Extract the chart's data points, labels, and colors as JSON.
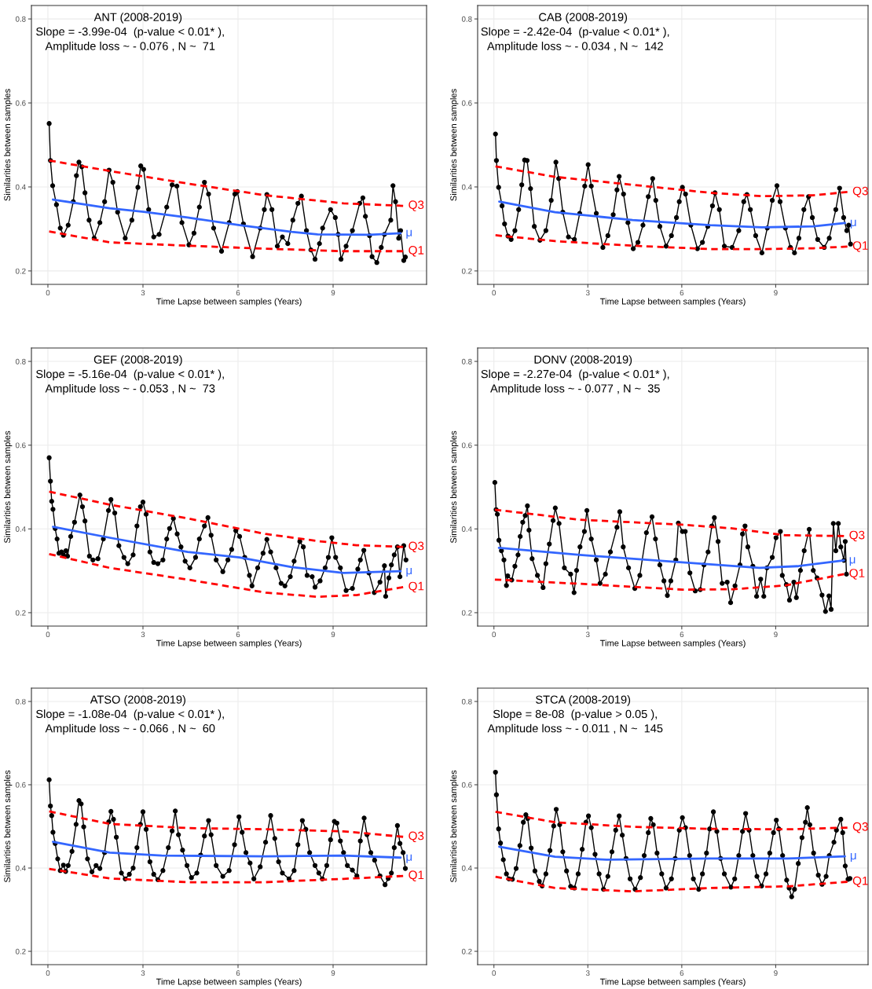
{
  "chart_data": [
    {
      "type": "line",
      "title": "ANT (2008-2019)",
      "annotations": [
        "Slope = -3.99e-04  (p-value < 0.01* ),",
        "Amplitude loss ~ - 0.076 , N ~  71"
      ],
      "xlabel": "Time Lapse between samples (Years)",
      "ylabel": "Similarities between samples",
      "xlim": [
        -0.52,
        11.95
      ],
      "ylim": [
        0.168,
        0.832
      ],
      "xticks": [
        0,
        3,
        6,
        9
      ],
      "yticks": [
        0.2,
        0.4,
        0.6,
        0.8
      ],
      "grid": true,
      "series": [
        {
          "color": "#000000",
          "marker": "circle",
          "x": [
            0.04,
            0.08,
            0.15,
            0.27,
            0.39,
            0.49,
            0.64,
            0.8,
            0.9,
            0.98,
            1.07,
            1.17,
            1.3,
            1.46,
            1.64,
            1.79,
            1.93,
            2.05,
            2.2,
            2.44,
            2.65,
            2.84,
            2.93,
            3.02,
            3.18,
            3.34,
            3.51,
            3.75,
            3.92,
            4.07,
            4.23,
            4.45,
            4.61,
            4.78,
            4.94,
            5.07,
            5.23,
            5.48,
            5.72,
            5.9,
            5.98,
            6.17,
            6.46,
            6.7,
            6.83,
            6.91,
            7.07,
            7.24,
            7.4,
            7.57,
            7.73,
            7.89,
            8.0,
            8.16,
            8.3,
            8.43,
            8.57,
            8.67,
            8.92,
            9.07,
            9.16,
            9.25,
            9.41,
            9.61,
            9.84,
            9.94,
            10.02,
            10.15,
            10.23,
            10.38,
            10.52,
            10.62,
            10.82,
            10.89,
            10.97,
            11.07,
            11.13,
            11.23,
            11.28
          ],
          "values": [
            0.551,
            0.463,
            0.403,
            0.358,
            0.302,
            0.285,
            0.309,
            0.365,
            0.427,
            0.459,
            0.448,
            0.386,
            0.321,
            0.278,
            0.315,
            0.365,
            0.44,
            0.411,
            0.34,
            0.278,
            0.321,
            0.399,
            0.45,
            0.442,
            0.346,
            0.281,
            0.287,
            0.352,
            0.405,
            0.402,
            0.315,
            0.262,
            0.29,
            0.352,
            0.411,
            0.383,
            0.302,
            0.247,
            0.315,
            0.383,
            0.389,
            0.312,
            0.234,
            0.302,
            0.346,
            0.382,
            0.346,
            0.259,
            0.281,
            0.265,
            0.321,
            0.361,
            0.378,
            0.296,
            0.25,
            0.228,
            0.265,
            0.302,
            0.346,
            0.327,
            0.287,
            0.228,
            0.259,
            0.296,
            0.361,
            0.374,
            0.33,
            0.284,
            0.234,
            0.22,
            0.256,
            0.287,
            0.321,
            0.403,
            0.365,
            0.278,
            0.296,
            0.225,
            0.233
          ]
        },
        {
          "name": "μ",
          "color": "#3366ff",
          "line_style": "solid",
          "x": [
            0.16,
            1.95,
            3.02,
            4.41,
            6.05,
            7.69,
            8.51,
            10.15,
            11.13
          ],
          "values": [
            0.37,
            0.349,
            0.341,
            0.327,
            0.309,
            0.293,
            0.287,
            0.286,
            0.29
          ]
        },
        {
          "name": "Q3",
          "color": "#ff0000",
          "line_style": "dashed",
          "x": [
            0.04,
            1.95,
            4.41,
            6.87,
            9.33,
            11.21
          ],
          "values": [
            0.463,
            0.438,
            0.408,
            0.38,
            0.361,
            0.355
          ]
        },
        {
          "name": "Q1",
          "color": "#ff0000",
          "line_style": "dashed",
          "x": [
            0.04,
            1.95,
            4.41,
            6.87,
            9.33,
            11.21
          ],
          "values": [
            0.294,
            0.268,
            0.26,
            0.253,
            0.247,
            0.247
          ]
        }
      ]
    },
    {
      "type": "line",
      "title": "CAB (2008-2019)",
      "annotations": [
        "Slope = -2.42e-04  (p-value < 0.01* ),",
        "Amplitude loss ~ - 0.034 , N ~  142"
      ],
      "xlabel": "Time Lapse between samples (Years)",
      "ylabel": "Similarities between samples",
      "xlim": [
        -0.52,
        11.95
      ],
      "ylim": [
        0.168,
        0.832
      ],
      "xticks": [
        0,
        3,
        6,
        9
      ],
      "yticks": [
        0.2,
        0.4,
        0.6,
        0.8
      ],
      "grid": true,
      "series": [
        {
          "color": "#000000",
          "marker": "circle",
          "x": [
            0.05,
            0.08,
            0.15,
            0.26,
            0.34,
            0.45,
            0.55,
            0.67,
            0.79,
            0.89,
            0.98,
            1.06,
            1.17,
            1.29,
            1.47,
            1.66,
            1.83,
            1.98,
            2.07,
            2.2,
            2.38,
            2.57,
            2.74,
            2.9,
            3.01,
            3.11,
            3.27,
            3.48,
            3.64,
            3.81,
            3.93,
            4.0,
            4.14,
            4.28,
            4.45,
            4.6,
            4.76,
            4.93,
            5.07,
            5.17,
            5.3,
            5.5,
            5.67,
            5.83,
            5.92,
            6.02,
            6.12,
            6.29,
            6.5,
            6.66,
            6.83,
            6.98,
            7.06,
            7.2,
            7.36,
            7.61,
            7.82,
            7.98,
            8.08,
            8.19,
            8.36,
            8.56,
            8.73,
            8.89,
            9.04,
            9.14,
            9.31,
            9.47,
            9.6,
            9.74,
            9.9,
            10.05,
            10.17,
            10.34,
            10.55,
            10.71,
            10.92,
            11.04,
            11.17,
            11.27,
            11.33,
            11.39
          ],
          "values": [
            0.526,
            0.463,
            0.399,
            0.355,
            0.312,
            0.283,
            0.275,
            0.296,
            0.346,
            0.405,
            0.464,
            0.463,
            0.396,
            0.306,
            0.273,
            0.296,
            0.368,
            0.459,
            0.42,
            0.34,
            0.281,
            0.275,
            0.337,
            0.402,
            0.453,
            0.402,
            0.337,
            0.256,
            0.284,
            0.334,
            0.393,
            0.425,
            0.383,
            0.315,
            0.253,
            0.268,
            0.309,
            0.377,
            0.42,
            0.368,
            0.306,
            0.259,
            0.284,
            0.327,
            0.365,
            0.399,
            0.383,
            0.309,
            0.253,
            0.268,
            0.306,
            0.355,
            0.386,
            0.346,
            0.259,
            0.256,
            0.296,
            0.365,
            0.382,
            0.346,
            0.284,
            0.243,
            0.302,
            0.368,
            0.403,
            0.365,
            0.302,
            0.256,
            0.243,
            0.278,
            0.346,
            0.377,
            0.327,
            0.275,
            0.256,
            0.278,
            0.346,
            0.397,
            0.327,
            0.296,
            0.309,
            0.264
          ]
        },
        {
          "name": "μ",
          "color": "#3366ff",
          "line_style": "solid",
          "x": [
            0.17,
            1.95,
            4.43,
            6.91,
            8.56,
            10.21,
            11.21
          ],
          "values": [
            0.365,
            0.34,
            0.321,
            0.309,
            0.304,
            0.306,
            0.314
          ]
        },
        {
          "name": "Q3",
          "color": "#ff0000",
          "line_style": "dashed",
          "x": [
            0.05,
            1.95,
            4.43,
            6.91,
            8.56,
            10.21,
            11.29
          ],
          "values": [
            0.449,
            0.424,
            0.405,
            0.386,
            0.378,
            0.38,
            0.388
          ]
        },
        {
          "name": "Q1",
          "color": "#ff0000",
          "line_style": "dashed",
          "x": [
            0.05,
            1.95,
            4.43,
            6.91,
            8.56,
            10.21,
            11.29
          ],
          "values": [
            0.285,
            0.271,
            0.26,
            0.252,
            0.252,
            0.254,
            0.258
          ]
        }
      ]
    },
    {
      "type": "line",
      "title": "GEF (2008-2019)",
      "annotations": [
        "Slope = -5.16e-04  (p-value < 0.01* ),",
        "Amplitude loss ~ - 0.053 , N ~  73"
      ],
      "xlabel": "Time Lapse between samples (Years)",
      "ylabel": "Similarities between samples",
      "xlim": [
        -0.52,
        11.95
      ],
      "ylim": [
        0.168,
        0.832
      ],
      "xticks": [
        0,
        3,
        6,
        9
      ],
      "yticks": [
        0.2,
        0.4,
        0.6,
        0.8
      ],
      "grid": true,
      "series": [
        {
          "color": "#000000",
          "marker": "circle",
          "x": [
            0.04,
            0.08,
            0.12,
            0.16,
            0.23,
            0.29,
            0.35,
            0.43,
            0.49,
            0.57,
            0.62,
            0.72,
            0.84,
            1.01,
            1.09,
            1.17,
            1.31,
            1.42,
            1.58,
            1.75,
            1.91,
            1.99,
            2.11,
            2.24,
            2.4,
            2.52,
            2.69,
            2.81,
            2.92,
            3.0,
            3.1,
            3.22,
            3.34,
            3.47,
            3.63,
            3.75,
            3.84,
            3.96,
            4.08,
            4.2,
            4.33,
            4.48,
            4.66,
            4.78,
            4.94,
            5.05,
            5.15,
            5.31,
            5.52,
            5.68,
            5.8,
            5.93,
            6.05,
            6.21,
            6.36,
            6.44,
            6.62,
            6.79,
            6.91,
            7.03,
            7.2,
            7.36,
            7.48,
            7.65,
            7.77,
            7.95,
            8.06,
            8.18,
            8.34,
            8.43,
            8.59,
            8.75,
            8.85,
            8.96,
            9.08,
            9.23,
            9.41,
            9.61,
            9.78,
            9.86,
            9.97,
            10.13,
            10.3,
            10.48,
            10.62,
            10.66,
            10.76,
            10.84,
            10.93,
            11.03,
            11.11,
            11.23,
            11.3
          ],
          "values": [
            0.57,
            0.514,
            0.466,
            0.447,
            0.401,
            0.376,
            0.342,
            0.345,
            0.338,
            0.348,
            0.335,
            0.382,
            0.416,
            0.481,
            0.453,
            0.419,
            0.335,
            0.326,
            0.329,
            0.376,
            0.444,
            0.47,
            0.438,
            0.36,
            0.332,
            0.317,
            0.338,
            0.407,
            0.453,
            0.464,
            0.435,
            0.345,
            0.32,
            0.317,
            0.326,
            0.376,
            0.401,
            0.425,
            0.388,
            0.357,
            0.323,
            0.307,
            0.332,
            0.376,
            0.407,
            0.427,
            0.385,
            0.326,
            0.298,
            0.326,
            0.351,
            0.396,
            0.382,
            0.332,
            0.289,
            0.264,
            0.307,
            0.342,
            0.375,
            0.345,
            0.307,
            0.27,
            0.264,
            0.286,
            0.323,
            0.37,
            0.357,
            0.289,
            0.286,
            0.261,
            0.276,
            0.307,
            0.332,
            0.379,
            0.332,
            0.307,
            0.253,
            0.258,
            0.304,
            0.326,
            0.349,
            0.295,
            0.248,
            0.273,
            0.312,
            0.239,
            0.283,
            0.314,
            0.338,
            0.357,
            0.286,
            0.36,
            0.326
          ]
        },
        {
          "name": "μ",
          "color": "#3366ff",
          "line_style": "solid",
          "x": [
            0.16,
            1.95,
            4.41,
            6.05,
            7.69,
            9.33,
            11.13
          ],
          "values": [
            0.405,
            0.379,
            0.345,
            0.332,
            0.309,
            0.295,
            0.299
          ]
        },
        {
          "name": "Q3",
          "color": "#ff0000",
          "line_style": "dashed",
          "x": [
            0.04,
            1.95,
            4.41,
            6.87,
            8.51,
            9.74,
            11.21
          ],
          "values": [
            0.489,
            0.458,
            0.425,
            0.388,
            0.371,
            0.361,
            0.357
          ]
        },
        {
          "name": "Q1",
          "color": "#ff0000",
          "line_style": "dashed",
          "x": [
            0.04,
            1.95,
            4.41,
            6.87,
            8.51,
            9.74,
            11.21
          ],
          "values": [
            0.34,
            0.307,
            0.279,
            0.248,
            0.238,
            0.242,
            0.261
          ]
        }
      ]
    },
    {
      "type": "line",
      "title": "DONV (2008-2019)",
      "annotations": [
        "Slope = -2.27e-04  (p-value < 0.01* ),",
        "Amplitude loss ~ - 0.077 , N ~  35"
      ],
      "xlabel": "Time Lapse between samples (Years)",
      "ylabel": "Similarities between samples",
      "xlim": [
        -0.52,
        11.95
      ],
      "ylim": [
        0.168,
        0.832
      ],
      "xticks": [
        0,
        3,
        6,
        9
      ],
      "yticks": [
        0.2,
        0.4,
        0.6,
        0.8
      ],
      "grid": true,
      "series": [
        {
          "color": "#000000",
          "marker": "circle",
          "x": [
            0.03,
            0.07,
            0.11,
            0.16,
            0.24,
            0.32,
            0.4,
            0.44,
            0.57,
            0.67,
            0.77,
            0.84,
            0.92,
            1.0,
            1.07,
            1.12,
            1.22,
            1.39,
            1.57,
            1.66,
            1.77,
            1.89,
            1.96,
            2.08,
            2.25,
            2.45,
            2.56,
            2.64,
            2.75,
            2.89,
            2.97,
            3.11,
            3.27,
            3.39,
            3.56,
            3.72,
            3.93,
            4.02,
            4.13,
            4.3,
            4.5,
            4.66,
            4.87,
            5.05,
            5.16,
            5.3,
            5.43,
            5.54,
            5.65,
            5.81,
            5.89,
            6.02,
            6.11,
            6.26,
            6.43,
            6.59,
            6.71,
            6.84,
            6.96,
            7.04,
            7.16,
            7.29,
            7.45,
            7.56,
            7.7,
            7.86,
            7.94,
            8.02,
            8.11,
            8.27,
            8.39,
            8.52,
            8.62,
            8.72,
            8.89,
            9.01,
            9.15,
            9.21,
            9.34,
            9.44,
            9.58,
            9.66,
            9.79,
            9.91,
            10.07,
            10.2,
            10.32,
            10.48,
            10.59,
            10.7,
            10.77,
            10.84,
            10.92,
            11.0,
            11.08,
            11.18,
            11.22,
            11.26
          ],
          "values": [
            0.511,
            0.446,
            0.435,
            0.373,
            0.348,
            0.326,
            0.265,
            0.288,
            0.278,
            0.311,
            0.338,
            0.382,
            0.416,
            0.432,
            0.455,
            0.397,
            0.329,
            0.289,
            0.26,
            0.317,
            0.364,
            0.42,
            0.45,
            0.413,
            0.307,
            0.292,
            0.248,
            0.301,
            0.357,
            0.394,
            0.444,
            0.376,
            0.326,
            0.27,
            0.292,
            0.345,
            0.404,
            0.441,
            0.357,
            0.307,
            0.258,
            0.289,
            0.391,
            0.429,
            0.376,
            0.314,
            0.276,
            0.241,
            0.276,
            0.326,
            0.414,
            0.394,
            0.394,
            0.295,
            0.252,
            0.255,
            0.314,
            0.345,
            0.407,
            0.427,
            0.37,
            0.27,
            0.273,
            0.224,
            0.264,
            0.314,
            0.388,
            0.407,
            0.357,
            0.311,
            0.239,
            0.28,
            0.239,
            0.307,
            0.332,
            0.379,
            0.394,
            0.289,
            0.267,
            0.23,
            0.273,
            0.236,
            0.301,
            0.348,
            0.399,
            0.301,
            0.283,
            0.242,
            0.203,
            0.24,
            0.208,
            0.413,
            0.348,
            0.413,
            0.357,
            0.325,
            0.37,
            0.292
          ]
        },
        {
          "name": "μ",
          "color": "#3366ff",
          "line_style": "solid",
          "x": [
            0.16,
            2.74,
            6.02,
            8.48,
            9.7,
            11.18
          ],
          "values": [
            0.355,
            0.338,
            0.32,
            0.307,
            0.311,
            0.325
          ]
        },
        {
          "name": "Q3",
          "color": "#ff0000",
          "line_style": "dashed",
          "x": [
            0.03,
            2.74,
            6.02,
            7.66,
            9.3,
            11.18
          ],
          "values": [
            0.446,
            0.422,
            0.41,
            0.401,
            0.385,
            0.383
          ]
        },
        {
          "name": "Q1",
          "color": "#ff0000",
          "line_style": "dashed",
          "x": [
            0.03,
            2.74,
            6.02,
            7.66,
            9.3,
            11.18
          ],
          "values": [
            0.279,
            0.269,
            0.255,
            0.256,
            0.265,
            0.292
          ]
        }
      ]
    },
    {
      "type": "line",
      "title": "ATSO (2008-2019)",
      "annotations": [
        "Slope = -1.08e-04  (p-value < 0.01* ),",
        "Amplitude loss ~ - 0.066 , N ~  60"
      ],
      "xlabel": "Time Lapse between samples (Years)",
      "ylabel": "Similarities between samples",
      "xlim": [
        -0.52,
        11.95
      ],
      "ylim": [
        0.168,
        0.832
      ],
      "xticks": [
        0,
        3,
        6,
        9
      ],
      "yticks": [
        0.2,
        0.4,
        0.6,
        0.8
      ],
      "grid": true,
      "series": [
        {
          "color": "#000000",
          "marker": "circle",
          "x": [
            0.04,
            0.08,
            0.12,
            0.16,
            0.23,
            0.31,
            0.39,
            0.49,
            0.56,
            0.64,
            0.76,
            0.89,
            0.98,
            1.05,
            1.13,
            1.25,
            1.39,
            1.52,
            1.64,
            1.79,
            1.92,
            1.99,
            2.07,
            2.16,
            2.32,
            2.44,
            2.57,
            2.69,
            2.81,
            2.92,
            3.0,
            3.1,
            3.22,
            3.34,
            3.47,
            3.63,
            3.8,
            3.92,
            4.02,
            4.12,
            4.25,
            4.39,
            4.53,
            4.7,
            4.82,
            4.94,
            5.07,
            5.15,
            5.31,
            5.52,
            5.72,
            5.89,
            6.03,
            6.13,
            6.25,
            6.38,
            6.5,
            6.7,
            6.87,
            7.03,
            7.16,
            7.28,
            7.4,
            7.61,
            7.77,
            7.89,
            8.03,
            8.14,
            8.26,
            8.43,
            8.55,
            8.66,
            8.8,
            8.92,
            9.04,
            9.12,
            9.23,
            9.33,
            9.45,
            9.61,
            9.75,
            9.86,
            9.98,
            10.07,
            10.19,
            10.31,
            10.48,
            10.64,
            10.74,
            10.84,
            10.93,
            11.03,
            11.11,
            11.21,
            11.28
          ],
          "values": [
            0.612,
            0.549,
            0.526,
            0.486,
            0.459,
            0.422,
            0.394,
            0.407,
            0.392,
            0.406,
            0.44,
            0.505,
            0.562,
            0.554,
            0.499,
            0.422,
            0.391,
            0.406,
            0.399,
            0.437,
            0.511,
            0.536,
            0.517,
            0.474,
            0.388,
            0.374,
            0.385,
            0.4,
            0.449,
            0.505,
            0.535,
            0.493,
            0.415,
            0.385,
            0.372,
            0.394,
            0.449,
            0.489,
            0.537,
            0.48,
            0.443,
            0.406,
            0.377,
            0.388,
            0.431,
            0.477,
            0.514,
            0.48,
            0.406,
            0.38,
            0.394,
            0.456,
            0.523,
            0.486,
            0.437,
            0.412,
            0.374,
            0.403,
            0.462,
            0.526,
            0.471,
            0.415,
            0.388,
            0.374,
            0.394,
            0.456,
            0.514,
            0.493,
            0.437,
            0.406,
            0.388,
            0.374,
            0.406,
            0.468,
            0.512,
            0.508,
            0.465,
            0.437,
            0.406,
            0.395,
            0.381,
            0.465,
            0.52,
            0.48,
            0.437,
            0.419,
            0.381,
            0.36,
            0.375,
            0.388,
            0.449,
            0.502,
            0.459,
            0.437,
            0.399
          ]
        },
        {
          "name": "μ",
          "color": "#3366ff",
          "line_style": "solid",
          "x": [
            0.16,
            1.95,
            3.59,
            6.87,
            9.33,
            11.13
          ],
          "values": [
            0.463,
            0.437,
            0.43,
            0.428,
            0.43,
            0.425
          ]
        },
        {
          "name": "Q3",
          "color": "#ff0000",
          "line_style": "dashed",
          "x": [
            0.04,
            1.95,
            4.41,
            6.87,
            9.33,
            11.21
          ],
          "values": [
            0.536,
            0.506,
            0.496,
            0.493,
            0.488,
            0.475
          ]
        },
        {
          "name": "Q1",
          "color": "#ff0000",
          "line_style": "dashed",
          "x": [
            0.04,
            1.95,
            4.41,
            6.87,
            9.33,
            11.21
          ],
          "values": [
            0.398,
            0.375,
            0.366,
            0.366,
            0.374,
            0.381
          ]
        }
      ]
    },
    {
      "type": "line",
      "title": "STCA (2008-2019)",
      "annotations": [
        "Slope = 8e-08  (p-value > 0.05 ),",
        "Amplitude loss ~ - 0.011 , N ~  145"
      ],
      "xlabel": "Time Lapse between samples (Years)",
      "ylabel": "Similarities between samples",
      "xlim": [
        -0.52,
        11.95
      ],
      "ylim": [
        0.168,
        0.832
      ],
      "xticks": [
        0,
        3,
        6,
        9
      ],
      "yticks": [
        0.2,
        0.4,
        0.6,
        0.8
      ],
      "grid": true,
      "series": [
        {
          "color": "#000000",
          "marker": "circle",
          "x": [
            0.05,
            0.08,
            0.15,
            0.21,
            0.3,
            0.4,
            0.48,
            0.59,
            0.71,
            0.83,
            0.94,
            1.02,
            1.08,
            1.19,
            1.31,
            1.45,
            1.54,
            1.66,
            1.79,
            1.91,
            1.99,
            2.1,
            2.2,
            2.32,
            2.45,
            2.57,
            2.69,
            2.82,
            2.94,
            3.02,
            3.11,
            3.23,
            3.36,
            3.5,
            3.64,
            3.77,
            3.89,
            4.0,
            4.1,
            4.22,
            4.35,
            4.51,
            4.68,
            4.8,
            4.93,
            5.01,
            5.09,
            5.21,
            5.36,
            5.5,
            5.67,
            5.79,
            5.92,
            6.02,
            6.12,
            6.25,
            6.37,
            6.54,
            6.66,
            6.79,
            6.89,
            7.01,
            7.12,
            7.24,
            7.36,
            7.57,
            7.69,
            7.82,
            7.94,
            8.04,
            8.15,
            8.27,
            8.4,
            8.55,
            8.69,
            8.81,
            8.93,
            9.02,
            9.1,
            9.22,
            9.35,
            9.43,
            9.51,
            9.6,
            9.72,
            9.84,
            9.95,
            10.01,
            10.09,
            10.21,
            10.36,
            10.48,
            10.61,
            10.71,
            10.86,
            10.94,
            11.08,
            11.14,
            11.22,
            11.31,
            11.37
          ],
          "values": [
            0.63,
            0.576,
            0.494,
            0.46,
            0.42,
            0.386,
            0.374,
            0.373,
            0.399,
            0.454,
            0.51,
            0.528,
            0.519,
            0.448,
            0.393,
            0.368,
            0.357,
            0.386,
            0.442,
            0.501,
            0.541,
            0.504,
            0.439,
            0.393,
            0.356,
            0.352,
            0.386,
            0.445,
            0.51,
            0.525,
            0.497,
            0.433,
            0.386,
            0.349,
            0.38,
            0.439,
            0.491,
            0.525,
            0.479,
            0.423,
            0.374,
            0.349,
            0.377,
            0.43,
            0.485,
            0.519,
            0.504,
            0.436,
            0.386,
            0.352,
            0.374,
            0.423,
            0.491,
            0.521,
            0.497,
            0.43,
            0.374,
            0.349,
            0.386,
            0.436,
            0.494,
            0.535,
            0.488,
            0.423,
            0.386,
            0.354,
            0.374,
            0.43,
            0.488,
            0.531,
            0.491,
            0.43,
            0.38,
            0.357,
            0.386,
            0.436,
            0.485,
            0.515,
            0.494,
            0.43,
            0.371,
            0.352,
            0.331,
            0.349,
            0.411,
            0.473,
            0.51,
            0.545,
            0.504,
            0.436,
            0.383,
            0.361,
            0.38,
            0.43,
            0.462,
            0.491,
            0.517,
            0.485,
            0.405,
            0.373,
            0.375
          ]
        },
        {
          "name": "μ",
          "color": "#3366ff",
          "line_style": "solid",
          "x": [
            0.17,
            1.95,
            3.6,
            6.91,
            9.39,
            11.21
          ],
          "values": [
            0.451,
            0.427,
            0.42,
            0.423,
            0.423,
            0.428
          ]
        },
        {
          "name": "Q3",
          "color": "#ff0000",
          "line_style": "dashed",
          "x": [
            0.05,
            1.95,
            4.43,
            6.91,
            9.39,
            11.29
          ],
          "values": [
            0.535,
            0.51,
            0.499,
            0.494,
            0.493,
            0.497
          ]
        },
        {
          "name": "Q1",
          "color": "#ff0000",
          "line_style": "dashed",
          "x": [
            0.05,
            1.95,
            4.43,
            6.91,
            9.39,
            11.29
          ],
          "values": [
            0.379,
            0.352,
            0.344,
            0.352,
            0.356,
            0.367
          ]
        }
      ]
    }
  ]
}
